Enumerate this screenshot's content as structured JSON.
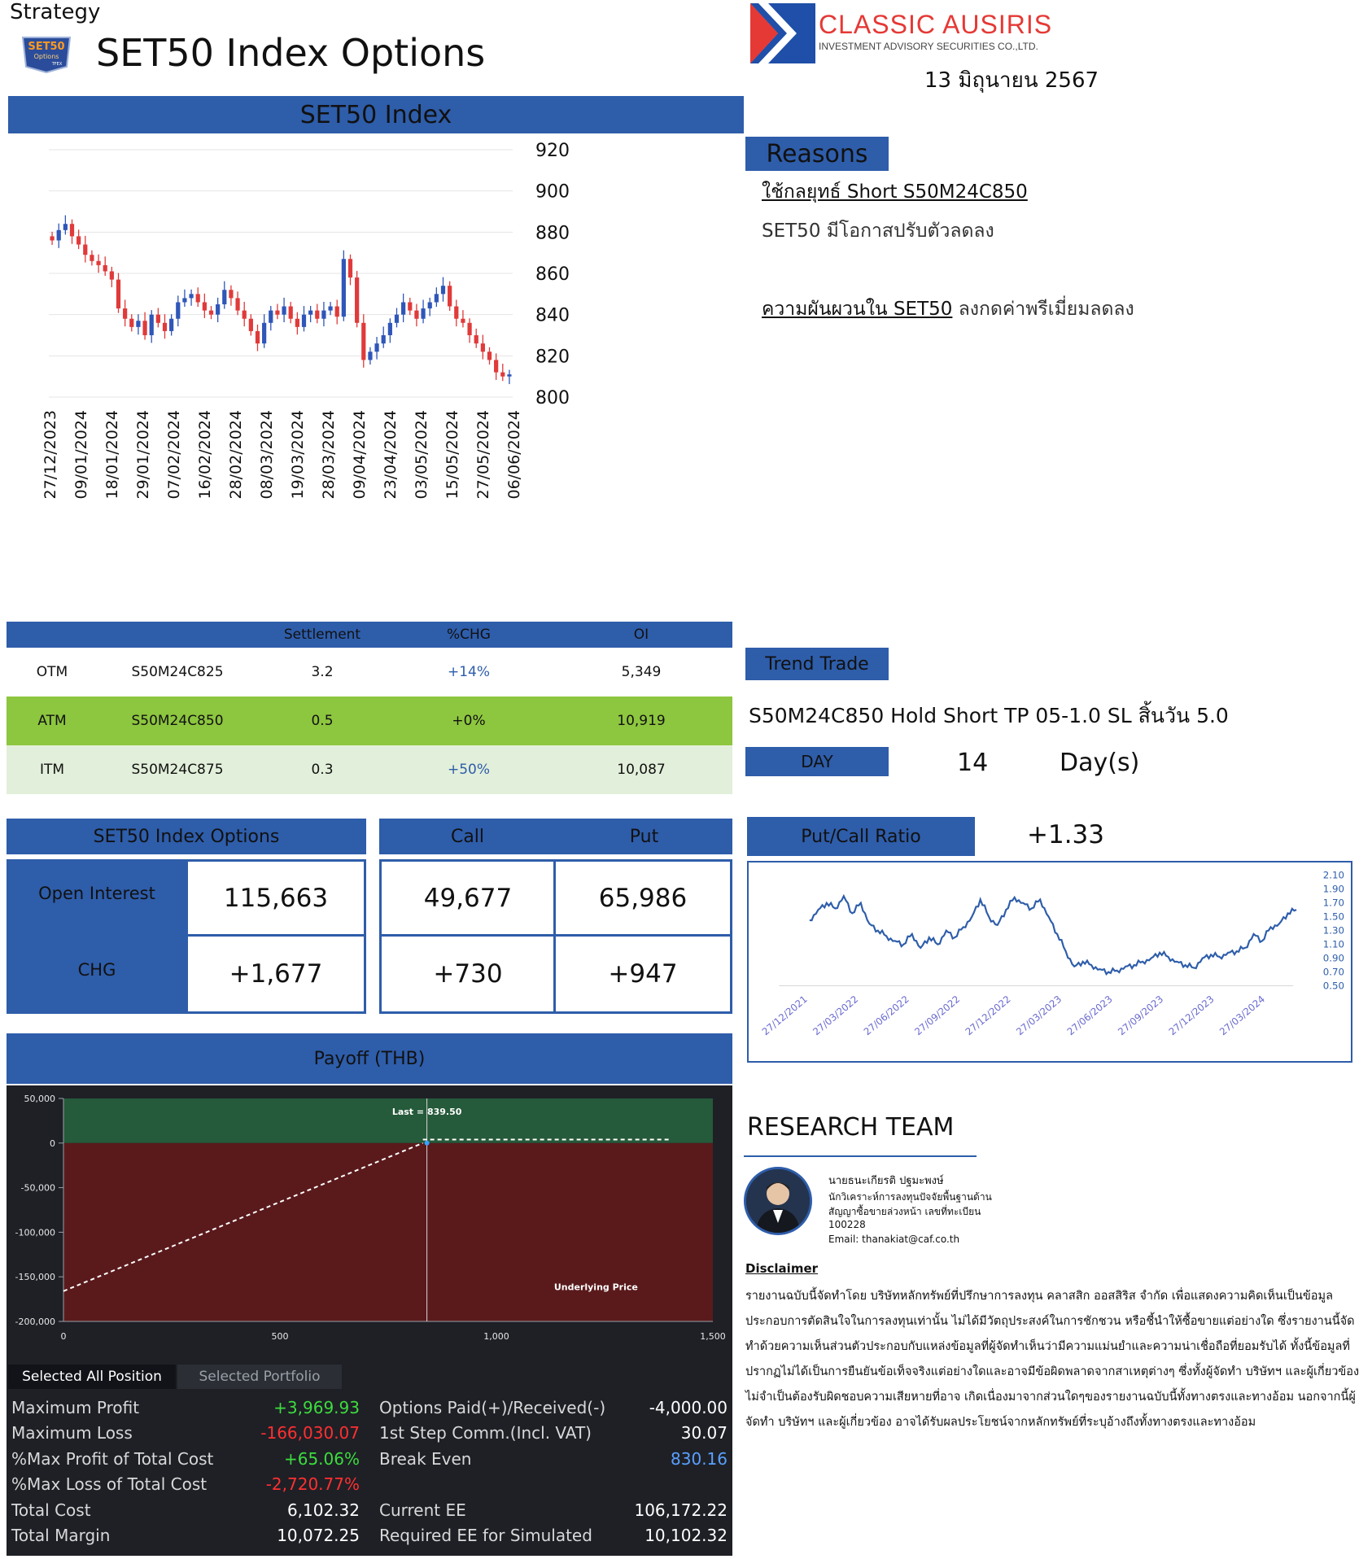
{
  "header": {
    "strategy_label": "Strategy",
    "set50_logo_text": "SET50",
    "set50_logo_sub": "Options",
    "set50_logo_tfex": "TFEX",
    "title": "SET50 Index Options",
    "company_name": "CLASSIC AUSIRIS",
    "company_sub": "INVESTMENT ADVISORY SECURITIES CO.,LTD.",
    "date": "13 มิถุนายน 2567",
    "brand_red": "#e53935",
    "brand_blue": "#2e5daa"
  },
  "set50_chart": {
    "header": "SET50 Index"
  },
  "chart_data": [
    {
      "type": "candlestick",
      "title": "SET50 Index",
      "ylim": [
        800,
        920
      ],
      "y_ticks": [
        "920",
        "900",
        "880",
        "860",
        "840",
        "820",
        "800"
      ],
      "x_ticks": [
        "27/12/2023",
        "09/01/2024",
        "18/01/2024",
        "29/01/2024",
        "07/02/2024",
        "16/02/2024",
        "28/02/2024",
        "08/03/2024",
        "19/03/2024",
        "28/03/2024",
        "09/04/2024",
        "23/04/2024",
        "03/05/2024",
        "15/05/2024",
        "27/05/2024",
        "06/06/2024"
      ],
      "close": [
        876,
        881,
        884,
        878,
        874,
        869,
        866,
        864,
        861,
        857,
        843,
        838,
        834,
        837,
        830,
        840,
        836,
        832,
        838,
        846,
        848,
        850,
        846,
        842,
        840,
        845,
        852,
        848,
        842,
        838,
        832,
        826,
        836,
        842,
        840,
        844,
        838,
        834,
        840,
        842,
        838,
        842,
        844,
        839,
        867,
        858,
        836,
        818,
        822,
        826,
        830,
        836,
        840,
        846,
        842,
        838,
        843,
        846,
        850,
        854,
        844,
        838,
        836,
        830,
        826,
        822,
        818,
        812,
        810,
        811
      ],
      "colors": {
        "up": "#2f56b8",
        "down": "#e03a3a"
      }
    },
    {
      "type": "line",
      "title": "Put/Call Ratio",
      "ylim": [
        0.5,
        2.1
      ],
      "y_ticks": [
        "2.10",
        "1.90",
        "1.70",
        "1.50",
        "1.30",
        "1.10",
        "0.90",
        "0.70",
        "0.50"
      ],
      "x_ticks": [
        "27/12/2021",
        "27/03/2022",
        "27/06/2022",
        "27/09/2022",
        "27/12/2022",
        "27/03/2023",
        "27/06/2023",
        "27/09/2023",
        "27/12/2023",
        "27/03/2024"
      ],
      "series": [
        {
          "values": [
            1.45,
            1.6,
            1.7,
            1.62,
            1.8,
            1.55,
            1.7,
            1.4,
            1.3,
            1.22,
            1.15,
            1.1,
            1.25,
            1.05,
            1.2,
            1.1,
            1.3,
            1.2,
            1.35,
            1.5,
            1.75,
            1.5,
            1.38,
            1.6,
            1.78,
            1.7,
            1.62,
            1.75,
            1.5,
            1.25,
            1.0,
            0.78,
            0.85,
            0.8,
            0.74,
            0.7,
            0.72,
            0.78,
            0.8,
            0.85,
            0.9,
            0.98,
            0.92,
            0.85,
            0.8,
            0.76,
            0.9,
            0.95,
            0.92,
            0.98,
            1.0,
            1.05,
            1.25,
            1.15,
            1.35,
            1.4,
            1.55,
            1.6
          ],
          "color": "#2e5daa"
        }
      ]
    },
    {
      "type": "line",
      "title": "Payoff (THB)",
      "xlim": [
        0,
        1500
      ],
      "ylim": [
        -200000,
        50000
      ],
      "x_ticks": [
        "0",
        "500",
        "1,000",
        "1,500"
      ],
      "y_ticks": [
        "50,000",
        "0",
        "-50,000",
        "-100,000",
        "-150,000",
        "-200,000"
      ],
      "x": [
        0,
        830.16,
        1400
      ],
      "y": [
        -166030.07,
        0,
        3969.93
      ],
      "last_label": "Last = 839.50",
      "last_value": 839.5,
      "xlabel": "Underlying Price"
    }
  ],
  "reasons": {
    "header": "Reasons",
    "line1": "ใช้กลยุทธ์ Short S50M24C850",
    "line2": "SET50 มีโอกาสปรับตัวลดลง",
    "line3_underlined": "ความผันผวนใน SET50",
    "line3_rest": " ลงกดค่าพรีเมี่ยมลดลง"
  },
  "options_table": {
    "columns": [
      "",
      "",
      "Settlement",
      "%CHG",
      "OI"
    ],
    "rows": [
      {
        "type": "OTM",
        "series": "S50M24C825",
        "settlement": "3.2",
        "chg": "+14%",
        "oi": "5,349"
      },
      {
        "type": "ATM",
        "series": "S50M24C850",
        "settlement": "0.5",
        "chg": "+0%",
        "oi": "10,919"
      },
      {
        "type": "ITM",
        "series": "S50M24C875",
        "settlement": "0.3",
        "chg": "+50%",
        "oi": "10,087"
      }
    ],
    "atm_color": "#8dc63f",
    "itm_color": "#e2efda"
  },
  "trend": {
    "header": "Trend Trade",
    "text": "S50M24C850 Hold Short TP 05-1.0 SL สิ้นวัน 5.0",
    "day_label": "DAY",
    "day_value": "14",
    "day_unit": "Day(s)"
  },
  "oi_box": {
    "header": "SET50 Index Options",
    "open_interest_label": "Open Interest",
    "open_interest_value": "115,663",
    "chg_label": "CHG",
    "chg_value": "+1,677",
    "call_header": "Call",
    "put_header": "Put",
    "call_oi": "49,677",
    "put_oi": "65,986",
    "call_chg": "+730",
    "put_chg": "+947"
  },
  "pcr": {
    "header": "Put/Call Ratio",
    "value": "+1.33"
  },
  "payoff": {
    "header": "Payoff (THB)",
    "tab_selected": "Selected All Position",
    "tab_other": "Selected Portfolio",
    "left_stats": [
      {
        "label": "Maximum Profit",
        "value": "+3,969.93",
        "color": "#3ddc3d"
      },
      {
        "label": "Maximum Loss",
        "value": "-166,030.07",
        "color": "#ff3030"
      },
      {
        "label": "%Max Profit of Total Cost",
        "value": "+65.06%",
        "color": "#3ddc3d"
      },
      {
        "label": "%Max Loss of Total Cost",
        "value": "-2,720.77%",
        "color": "#ff3030"
      },
      {
        "label": "Total Cost",
        "value": "6,102.32",
        "color": "#ffffff"
      },
      {
        "label": "Total Margin",
        "value": "10,072.25",
        "color": "#ffffff"
      }
    ],
    "right_stats": [
      {
        "label": "Options Paid(+)/Received(-)",
        "value": "-4,000.00",
        "color": "#ffffff"
      },
      {
        "label": "1st Step Comm.(Incl. VAT)",
        "value": "30.07",
        "color": "#ffffff"
      },
      {
        "label": "Break Even",
        "value": "830.16",
        "color": "#5aa0ff"
      },
      {
        "label": "",
        "value": "",
        "color": "#ffffff"
      },
      {
        "label": "Current EE",
        "value": "106,172.22",
        "color": "#ffffff"
      },
      {
        "label": "Required EE for Simulated",
        "value": "10,102.32",
        "color": "#ffffff"
      }
    ]
  },
  "research": {
    "title": "RESEARCH TEAM",
    "name": "นายธนะเกียรติ ปฐมะพงษ์",
    "role1": "นักวิเคราะห์การลงทุนปัจจัยพื้นฐานด้าน",
    "role2": "สัญญาซื้อขายล่วงหน้า เลขที่ทะเบียน",
    "reg_no": "100228",
    "email": "Email: thanakiat@caf.co.th",
    "disclaimer_title": "Disclaimer",
    "disclaimer": "รายงานฉบับนี้จัดทำโดย บริษัทหลักทรัพย์ที่ปรึกษาการลงทุน คลาสสิก ออสสิริส จำกัด เพื่อแสดงความคิดเห็นเป็นข้อมูลประกอบการตัดสินใจในการลงทุนเท่านั้น ไม่ได้มีวัตถุประสงค์ในการชักชวน หรือชี้นำให้ซื้อขายแต่อย่างใด ซึ่งรายงานนี้จัดทำด้วยความเห็นส่วนตัวประกอบกับแหล่งข้อมูลที่ผู้จัดทำเห็นว่ามีความแม่นยำและความน่าเชื่อถือที่ยอมรับได้ ทั้งนี้ข้อมูลที่ปรากฏไม่ได้เป็นการยืนยันข้อเท็จจริงแต่อย่างใดและอาจมีข้อผิดพลาดจากสาเหตุต่างๆ ซึ่งทั้งผู้จัดทำ บริษัทฯ และผู้เกี่ยวข้องไม่จำเป็นต้องรับผิดชอบความเสียหายที่อาจ เกิดเนื่องมาจากส่วนใดๆของรายงานฉบับนี้ทั้งทางตรงและทางอ้อม นอกจากนี้ผู้จัดทำ บริษัทฯ และผู้เกี่ยวข้อง อาจได้รับผลประโยชน์จากหลักทรัพย์ที่ระบุอ้างถึงทั้งทางตรงและทางอ้อม"
  }
}
